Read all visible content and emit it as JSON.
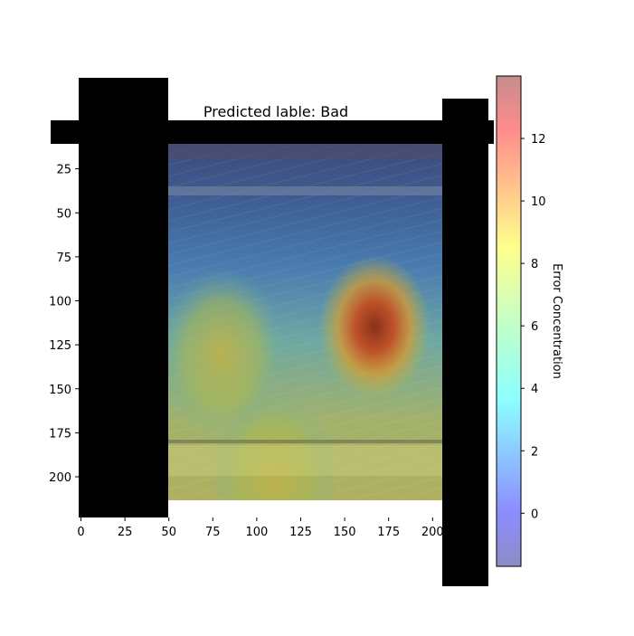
{
  "chart_data": {
    "type": "heatmap",
    "title": "Predicted lable: Bad",
    "x_ticks": [
      0,
      25,
      50,
      75,
      100,
      125,
      150,
      175,
      200
    ],
    "y_ticks": [
      25,
      50,
      75,
      100,
      125,
      150,
      175,
      200
    ],
    "colorbar": {
      "label": "Error Concentration",
      "ticks": [
        0,
        2,
        4,
        6,
        8,
        10,
        12
      ],
      "range": [
        -1.7,
        14.0
      ],
      "colormap": "jet"
    },
    "hotspots": [
      {
        "x": 167,
        "y": 115,
        "value": 13.5
      },
      {
        "x": 80,
        "y": 130,
        "value": 8.5
      },
      {
        "x": 110,
        "y": 200,
        "value": 9.0
      }
    ]
  }
}
